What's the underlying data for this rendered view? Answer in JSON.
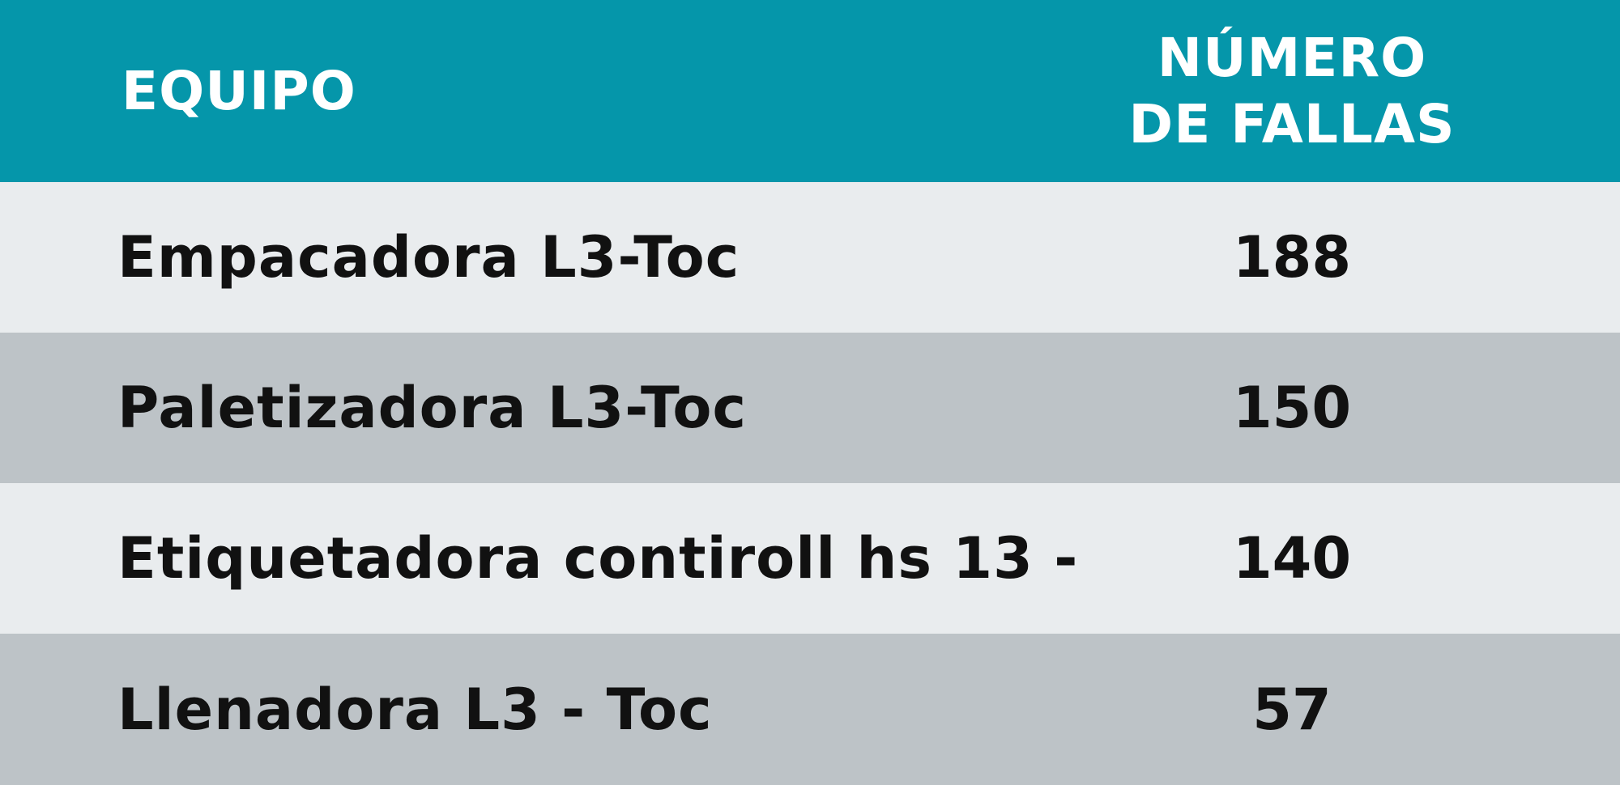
{
  "header": {
    "equipo": "EQUIPO",
    "fallas_line1": "NÚMERO",
    "fallas_line2": "DE FALLAS"
  },
  "rows": [
    {
      "equipo": "Empacadora L3-Toc",
      "fallas": "188"
    },
    {
      "equipo": "Paletizadora L3-Toc",
      "fallas": "150"
    },
    {
      "equipo": "Etiquetadora contiroll hs 13 -",
      "fallas": "140"
    },
    {
      "equipo": "Llenadora L3 - Toc",
      "fallas": "57"
    }
  ],
  "colors": {
    "header_bg": "#0596aa",
    "row_light": "#e9ecee",
    "row_dark": "#bdc3c7",
    "header_text": "#ffffff",
    "body_text": "#111111"
  },
  "chart_data": {
    "type": "table",
    "columns": [
      "EQUIPO",
      "NÚMERO DE FALLAS"
    ],
    "rows": [
      [
        "Empacadora L3-Toc",
        188
      ],
      [
        "Paletizadora L3-Toc",
        150
      ],
      [
        "Etiquetadora contiroll hs 13 -",
        140
      ],
      [
        "Llenadora L3 - Toc",
        57
      ]
    ]
  }
}
